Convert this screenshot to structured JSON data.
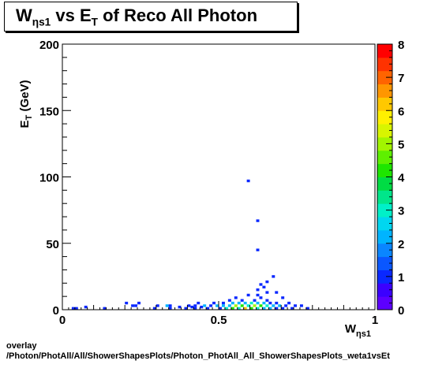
{
  "title": {
    "main": "W",
    "sub": "ηs1",
    "mid": " vs E",
    "sub2": "T",
    "tail": " of Reco All Photon"
  },
  "footer": {
    "line1": "overlay",
    "line2": "/Photon/PhotAll/All/ShowerShapesPlots/Photon_PhotAll_All_ShowerShapesPlots_weta1vsEt"
  },
  "colors": {
    "palette": [
      "#5d00ff",
      "#3b00ff",
      "#0a28ff",
      "#0a57ff",
      "#0a86ff",
      "#00b4ff",
      "#00d6f0",
      "#00f0c8",
      "#00e68a",
      "#00dc44",
      "#1ee600",
      "#5ef000",
      "#a2f500",
      "#d8f500",
      "#fff000",
      "#ffc800",
      "#ff9600",
      "#ff6400",
      "#ff3200",
      "#ff0000"
    ]
  },
  "chart_data": {
    "type": "heatmap",
    "title": "W_ηs1 vs E_T of Reco All Photon",
    "xlabel": "W_ηs1",
    "ylabel": "E_T (GeV)",
    "xlim": [
      0,
      1
    ],
    "ylim": [
      0,
      200
    ],
    "zlim": [
      0,
      8
    ],
    "x_ticks": [
      "0",
      "0.5",
      "1"
    ],
    "y_ticks": [
      "0",
      "50",
      "100",
      "150",
      "200"
    ],
    "z_ticks": [
      "0",
      "1",
      "2",
      "3",
      "4",
      "5",
      "6",
      "7",
      "8"
    ],
    "grid": false,
    "bin_width": [
      0.01,
      2
    ],
    "cells": [
      {
        "x": 0.035,
        "y": 1,
        "z": 1
      },
      {
        "x": 0.045,
        "y": 1,
        "z": 1
      },
      {
        "x": 0.075,
        "y": 2,
        "z": 1
      },
      {
        "x": 0.135,
        "y": 1,
        "z": 1
      },
      {
        "x": 0.205,
        "y": 5,
        "z": 1
      },
      {
        "x": 0.225,
        "y": 3,
        "z": 1
      },
      {
        "x": 0.235,
        "y": 3,
        "z": 1
      },
      {
        "x": 0.245,
        "y": 5,
        "z": 1
      },
      {
        "x": 0.295,
        "y": 1,
        "z": 1
      },
      {
        "x": 0.305,
        "y": 3,
        "z": 1
      },
      {
        "x": 0.335,
        "y": 3,
        "z": 2
      },
      {
        "x": 0.345,
        "y": 3,
        "z": 1
      },
      {
        "x": 0.345,
        "y": 1,
        "z": 1
      },
      {
        "x": 0.375,
        "y": 2,
        "z": 1
      },
      {
        "x": 0.395,
        "y": 1,
        "z": 1
      },
      {
        "x": 0.405,
        "y": 3,
        "z": 1
      },
      {
        "x": 0.415,
        "y": 2,
        "z": 1
      },
      {
        "x": 0.425,
        "y": 1,
        "z": 1
      },
      {
        "x": 0.425,
        "y": 3,
        "z": 1
      },
      {
        "x": 0.435,
        "y": 5,
        "z": 1
      },
      {
        "x": 0.445,
        "y": 2,
        "z": 1
      },
      {
        "x": 0.455,
        "y": 3,
        "z": 2
      },
      {
        "x": 0.465,
        "y": 1,
        "z": 1
      },
      {
        "x": 0.475,
        "y": 3,
        "z": 1
      },
      {
        "x": 0.485,
        "y": 5,
        "z": 1
      },
      {
        "x": 0.495,
        "y": 3,
        "z": 2
      },
      {
        "x": 0.505,
        "y": 1,
        "z": 1
      },
      {
        "x": 0.515,
        "y": 5,
        "z": 1
      },
      {
        "x": 0.515,
        "y": 3,
        "z": 2
      },
      {
        "x": 0.525,
        "y": 1,
        "z": 3
      },
      {
        "x": 0.535,
        "y": 3,
        "z": 2
      },
      {
        "x": 0.535,
        "y": 7,
        "z": 1
      },
      {
        "x": 0.545,
        "y": 1,
        "z": 4
      },
      {
        "x": 0.545,
        "y": 5,
        "z": 2
      },
      {
        "x": 0.555,
        "y": 3,
        "z": 5
      },
      {
        "x": 0.555,
        "y": 9,
        "z": 1
      },
      {
        "x": 0.565,
        "y": 1,
        "z": 3
      },
      {
        "x": 0.565,
        "y": 5,
        "z": 2
      },
      {
        "x": 0.575,
        "y": 3,
        "z": 4
      },
      {
        "x": 0.575,
        "y": 7,
        "z": 1
      },
      {
        "x": 0.585,
        "y": 1,
        "z": 6
      },
      {
        "x": 0.585,
        "y": 5,
        "z": 2
      },
      {
        "x": 0.595,
        "y": 3,
        "z": 3
      },
      {
        "x": 0.595,
        "y": 11,
        "z": 1
      },
      {
        "x": 0.605,
        "y": 1,
        "z": 4
      },
      {
        "x": 0.605,
        "y": 5,
        "z": 3
      },
      {
        "x": 0.615,
        "y": 3,
        "z": 5
      },
      {
        "x": 0.615,
        "y": 7,
        "z": 1
      },
      {
        "x": 0.625,
        "y": 1,
        "z": 3
      },
      {
        "x": 0.625,
        "y": 5,
        "z": 2
      },
      {
        "x": 0.635,
        "y": 3,
        "z": 4
      },
      {
        "x": 0.635,
        "y": 9,
        "z": 1
      },
      {
        "x": 0.645,
        "y": 1,
        "z": 2
      },
      {
        "x": 0.645,
        "y": 5,
        "z": 2
      },
      {
        "x": 0.655,
        "y": 3,
        "z": 3
      },
      {
        "x": 0.655,
        "y": 7,
        "z": 1
      },
      {
        "x": 0.665,
        "y": 1,
        "z": 2
      },
      {
        "x": 0.665,
        "y": 5,
        "z": 1
      },
      {
        "x": 0.675,
        "y": 3,
        "z": 2
      },
      {
        "x": 0.685,
        "y": 1,
        "z": 1
      },
      {
        "x": 0.685,
        "y": 5,
        "z": 1
      },
      {
        "x": 0.695,
        "y": 3,
        "z": 2
      },
      {
        "x": 0.705,
        "y": 1,
        "z": 1
      },
      {
        "x": 0.715,
        "y": 3,
        "z": 1
      },
      {
        "x": 0.725,
        "y": 5,
        "z": 1
      },
      {
        "x": 0.735,
        "y": 1,
        "z": 1
      },
      {
        "x": 0.745,
        "y": 3,
        "z": 1
      },
      {
        "x": 0.765,
        "y": 3,
        "z": 1
      },
      {
        "x": 0.785,
        "y": 1,
        "z": 1
      },
      {
        "x": 0.625,
        "y": 11,
        "z": 1
      },
      {
        "x": 0.655,
        "y": 13,
        "z": 1
      },
      {
        "x": 0.625,
        "y": 15,
        "z": 1
      },
      {
        "x": 0.645,
        "y": 17,
        "z": 1
      },
      {
        "x": 0.635,
        "y": 19,
        "z": 1
      },
      {
        "x": 0.655,
        "y": 21,
        "z": 1
      },
      {
        "x": 0.675,
        "y": 25,
        "z": 1
      },
      {
        "x": 0.685,
        "y": 13,
        "z": 1
      },
      {
        "x": 0.705,
        "y": 9,
        "z": 1
      },
      {
        "x": 0.625,
        "y": 45,
        "z": 1
      },
      {
        "x": 0.625,
        "y": 67,
        "z": 1
      },
      {
        "x": 0.595,
        "y": 97,
        "z": 1
      }
    ]
  }
}
